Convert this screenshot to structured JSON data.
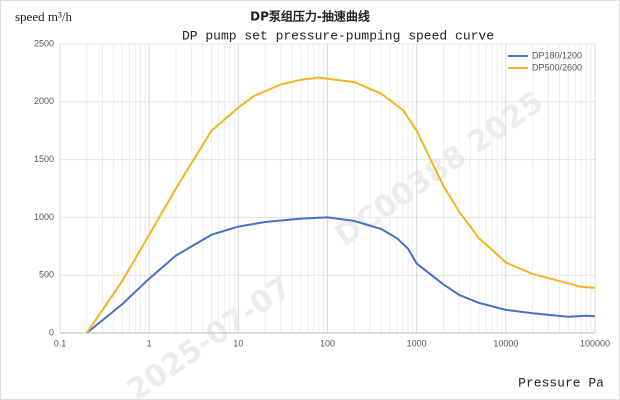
{
  "chart_data": {
    "type": "line",
    "title": "DP泵组压力-抽速曲线",
    "subtitle": "DP pump set pressure-pumping speed curve",
    "y_label": "speed m³/h",
    "x_label": "Pressure Pa",
    "watermarks": [
      "DC00388 2025",
      "2025-07-07"
    ],
    "x_log": true,
    "grid": true,
    "minor_grid": true,
    "legend": "top-right",
    "xlim": [
      0.1,
      100000
    ],
    "xticks": [
      0.1,
      1,
      10,
      100,
      1000,
      10000,
      100000
    ],
    "ylim": [
      0,
      2500
    ],
    "yticks": [
      0,
      500,
      1000,
      1500,
      2000,
      2500
    ],
    "series": [
      {
        "name": "DP180/1200",
        "color": "#4472c4",
        "x": [
          0.2,
          0.5,
          1,
          2,
          5,
          10,
          20,
          50,
          100,
          200,
          400,
          600,
          800,
          1000,
          2000,
          3000,
          5000,
          10000,
          20000,
          50000,
          80000,
          100000
        ],
        "values": [
          0,
          250,
          470,
          670,
          850,
          920,
          960,
          990,
          1000,
          970,
          900,
          820,
          730,
          600,
          420,
          330,
          260,
          200,
          170,
          140,
          150,
          145
        ]
      },
      {
        "name": "DP500/2600",
        "color": "#f5b324",
        "x": [
          0.2,
          0.5,
          1,
          2,
          5,
          10,
          15,
          30,
          50,
          80,
          100,
          200,
          400,
          700,
          1000,
          2000,
          3000,
          5000,
          7000,
          10000,
          20000,
          50000,
          70000,
          100000
        ],
        "values": [
          0,
          450,
          850,
          1250,
          1750,
          1950,
          2050,
          2150,
          2190,
          2210,
          2200,
          2170,
          2070,
          1930,
          1750,
          1270,
          1050,
          820,
          720,
          610,
          510,
          430,
          400,
          390
        ]
      }
    ]
  }
}
